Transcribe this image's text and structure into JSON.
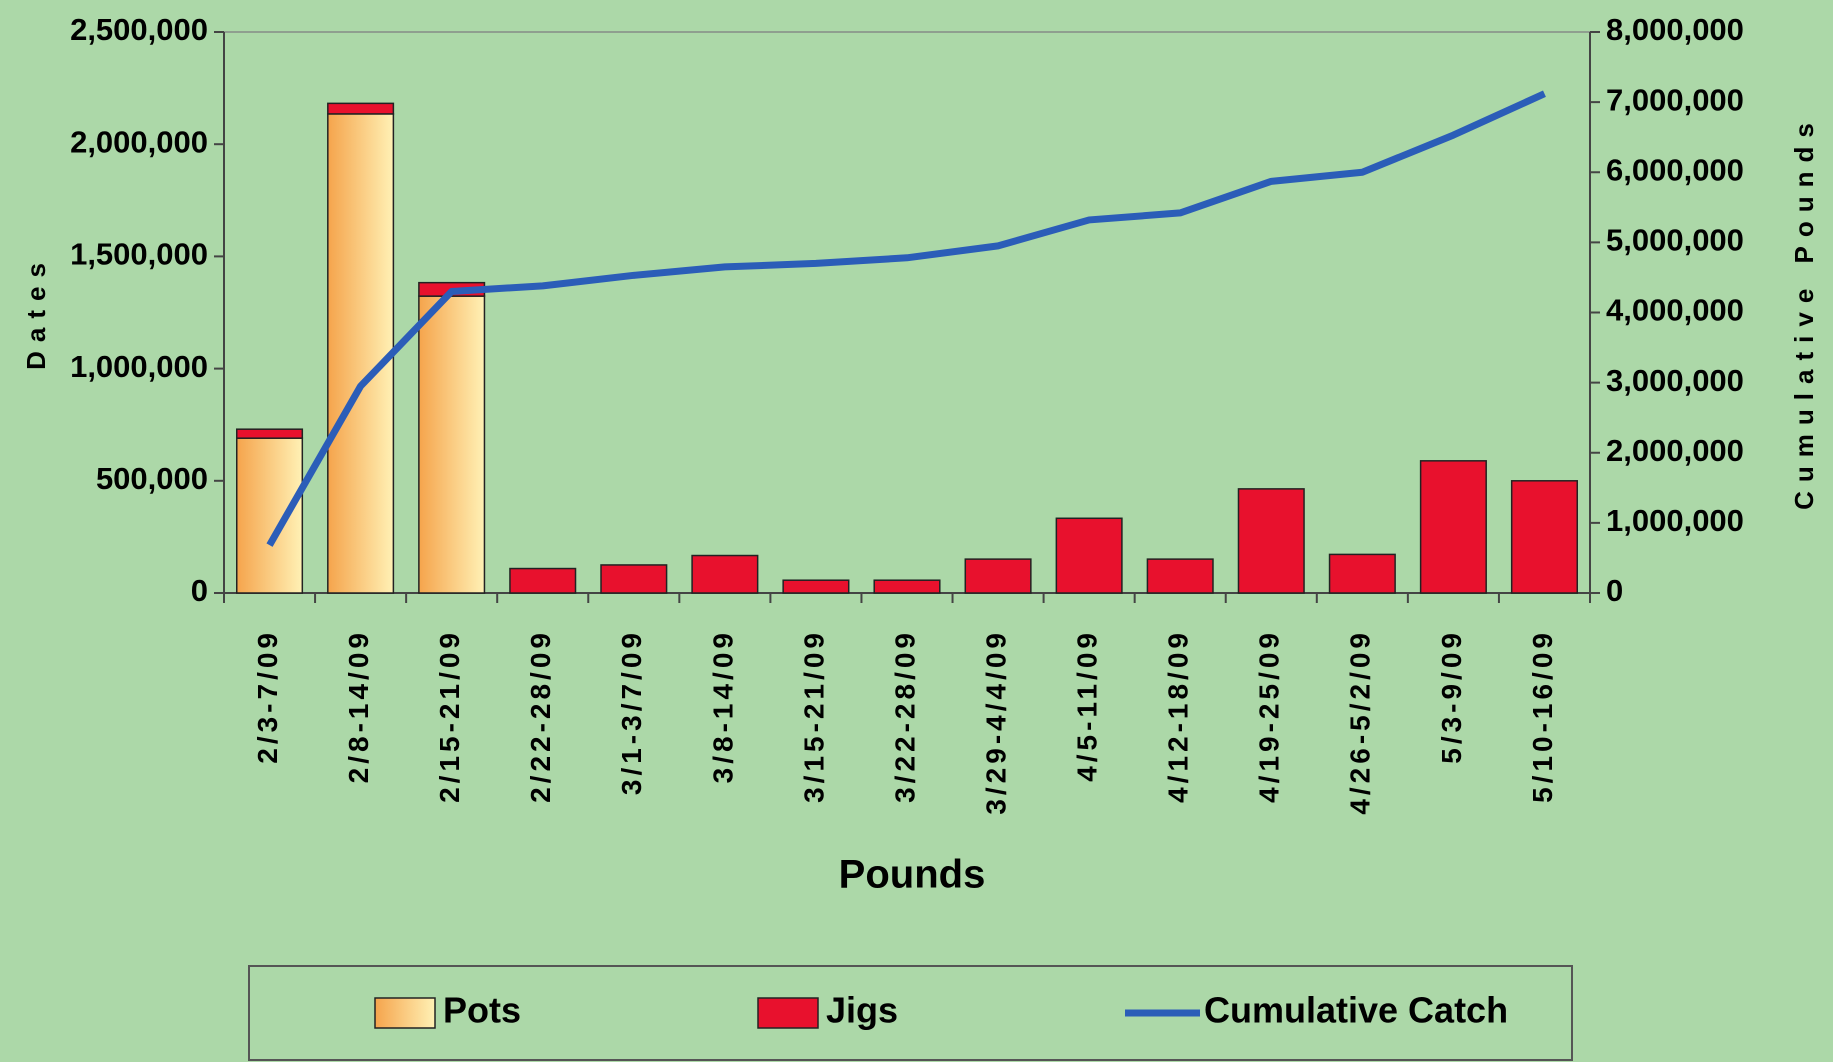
{
  "chart_data": {
    "type": "bar",
    "x_label": "Pounds",
    "y_label": "Dates",
    "y2_label": "Cumulative Pounds",
    "categories": [
      "2/3-7/09",
      "2/8-14/09",
      "2/15-21/09",
      "2/22-28/09",
      "3/1-3/7/09",
      "3/8-14/09",
      "3/15-21/09",
      "3/22-28/09",
      "3/29-4/4/09",
      "4/5-11/09",
      "4/12-18/09",
      "4/19-25/09",
      "4/26-5/2/09",
      "5/3-9/09",
      "5/10-16/09"
    ],
    "series": [
      {
        "name": "Pots",
        "type": "bar",
        "color": "#f5a44c",
        "values": [
          690000,
          2135000,
          1323000,
          0,
          0,
          0,
          0,
          0,
          0,
          0,
          0,
          0,
          0,
          0,
          0
        ]
      },
      {
        "name": "Jigs",
        "type": "bar",
        "color": "#e8112d",
        "values": [
          40000,
          47000,
          60000,
          109000,
          125000,
          167000,
          57000,
          57000,
          151000,
          333000,
          151000,
          464000,
          172000,
          589000,
          500000
        ]
      },
      {
        "name": "Cumulative Catch",
        "type": "line",
        "axis": "y2",
        "color": "#2b5db8",
        "values": [
          683000,
          2950000,
          4300000,
          4380000,
          4530000,
          4650000,
          4700000,
          4780000,
          4950000,
          5320000,
          5420000,
          5870000,
          6000000,
          6530000,
          7120000
        ]
      }
    ],
    "stacked": true,
    "ylim": [
      0,
      2500000
    ],
    "yticks": [
      0,
      {
        "value": 500000,
        "label": "500,000"
      },
      {
        "value": 1000000,
        "label": "1,000,000"
      },
      {
        "value": 1500000,
        "label": "1,500,000"
      },
      {
        "value": 2000000,
        "label": "2,000,000"
      },
      {
        "value": 2500000,
        "label": "2,500,000"
      }
    ],
    "y2lim": [
      0,
      8000000
    ],
    "y2ticks": [
      0,
      {
        "value": 1000000,
        "label": "1,000,000"
      },
      {
        "value": 2000000,
        "label": "2,000,000"
      },
      {
        "value": 3000000,
        "label": "3,000,000"
      },
      {
        "value": 4000000,
        "label": "4,000,000"
      },
      {
        "value": 5000000,
        "label": "5,000,000"
      },
      {
        "value": 6000000,
        "label": "6,000,000"
      },
      {
        "value": 7000000,
        "label": "7,000,000"
      },
      {
        "value": 8000000,
        "label": "8,000,000"
      }
    ],
    "legend": "bottom"
  }
}
